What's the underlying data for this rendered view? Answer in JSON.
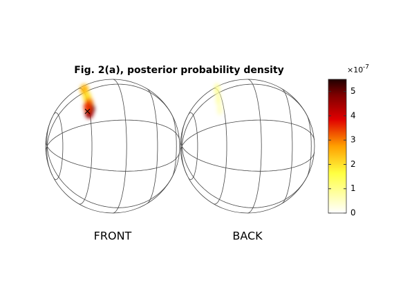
{
  "chart_data": {
    "type": "globe_density",
    "title": "Fig. 2(a), posterior probability density",
    "panels": [
      "FRONT",
      "BACK"
    ],
    "front_density": [
      2.5,
      2,
      3,
      5,
      4.5,
      3.5
    ],
    "back_density": [
      0.9,
      0.7,
      0.5
    ],
    "colorbar": {
      "clim": [
        0,
        5.5
      ],
      "ticks": [
        0,
        1,
        2,
        3,
        4,
        5
      ],
      "exponent_base": "×10",
      "exponent": "-7"
    }
  }
}
